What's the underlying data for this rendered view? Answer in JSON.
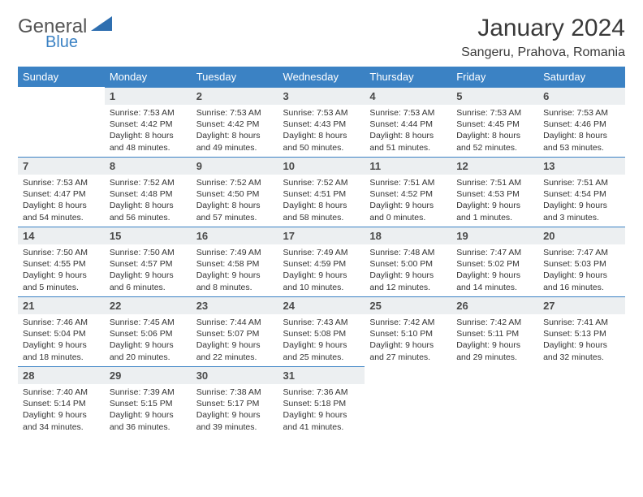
{
  "logo": {
    "word1": "General",
    "word2": "Blue"
  },
  "header": {
    "month": "January 2024",
    "location": "Sangeru, Prahova, Romania"
  },
  "colors": {
    "accent": "#3b82c4",
    "dayHeaderBg": "#eceff1",
    "textDark": "#3a3a3a"
  },
  "weekdays": [
    "Sunday",
    "Monday",
    "Tuesday",
    "Wednesday",
    "Thursday",
    "Friday",
    "Saturday"
  ],
  "firstWeekday": 1,
  "days": [
    {
      "n": "1",
      "sunrise": "7:53 AM",
      "sunset": "4:42 PM",
      "day_h": "8",
      "day_m": "48"
    },
    {
      "n": "2",
      "sunrise": "7:53 AM",
      "sunset": "4:42 PM",
      "day_h": "8",
      "day_m": "49"
    },
    {
      "n": "3",
      "sunrise": "7:53 AM",
      "sunset": "4:43 PM",
      "day_h": "8",
      "day_m": "50"
    },
    {
      "n": "4",
      "sunrise": "7:53 AM",
      "sunset": "4:44 PM",
      "day_h": "8",
      "day_m": "51"
    },
    {
      "n": "5",
      "sunrise": "7:53 AM",
      "sunset": "4:45 PM",
      "day_h": "8",
      "day_m": "52"
    },
    {
      "n": "6",
      "sunrise": "7:53 AM",
      "sunset": "4:46 PM",
      "day_h": "8",
      "day_m": "53"
    },
    {
      "n": "7",
      "sunrise": "7:53 AM",
      "sunset": "4:47 PM",
      "day_h": "8",
      "day_m": "54"
    },
    {
      "n": "8",
      "sunrise": "7:52 AM",
      "sunset": "4:48 PM",
      "day_h": "8",
      "day_m": "56"
    },
    {
      "n": "9",
      "sunrise": "7:52 AM",
      "sunset": "4:50 PM",
      "day_h": "8",
      "day_m": "57"
    },
    {
      "n": "10",
      "sunrise": "7:52 AM",
      "sunset": "4:51 PM",
      "day_h": "8",
      "day_m": "58"
    },
    {
      "n": "11",
      "sunrise": "7:51 AM",
      "sunset": "4:52 PM",
      "day_h": "9",
      "day_m": "0"
    },
    {
      "n": "12",
      "sunrise": "7:51 AM",
      "sunset": "4:53 PM",
      "day_h": "9",
      "day_m": "1"
    },
    {
      "n": "13",
      "sunrise": "7:51 AM",
      "sunset": "4:54 PM",
      "day_h": "9",
      "day_m": "3"
    },
    {
      "n": "14",
      "sunrise": "7:50 AM",
      "sunset": "4:55 PM",
      "day_h": "9",
      "day_m": "5"
    },
    {
      "n": "15",
      "sunrise": "7:50 AM",
      "sunset": "4:57 PM",
      "day_h": "9",
      "day_m": "6"
    },
    {
      "n": "16",
      "sunrise": "7:49 AM",
      "sunset": "4:58 PM",
      "day_h": "9",
      "day_m": "8"
    },
    {
      "n": "17",
      "sunrise": "7:49 AM",
      "sunset": "4:59 PM",
      "day_h": "9",
      "day_m": "10"
    },
    {
      "n": "18",
      "sunrise": "7:48 AM",
      "sunset": "5:00 PM",
      "day_h": "9",
      "day_m": "12"
    },
    {
      "n": "19",
      "sunrise": "7:47 AM",
      "sunset": "5:02 PM",
      "day_h": "9",
      "day_m": "14"
    },
    {
      "n": "20",
      "sunrise": "7:47 AM",
      "sunset": "5:03 PM",
      "day_h": "9",
      "day_m": "16"
    },
    {
      "n": "21",
      "sunrise": "7:46 AM",
      "sunset": "5:04 PM",
      "day_h": "9",
      "day_m": "18"
    },
    {
      "n": "22",
      "sunrise": "7:45 AM",
      "sunset": "5:06 PM",
      "day_h": "9",
      "day_m": "20"
    },
    {
      "n": "23",
      "sunrise": "7:44 AM",
      "sunset": "5:07 PM",
      "day_h": "9",
      "day_m": "22"
    },
    {
      "n": "24",
      "sunrise": "7:43 AM",
      "sunset": "5:08 PM",
      "day_h": "9",
      "day_m": "25"
    },
    {
      "n": "25",
      "sunrise": "7:42 AM",
      "sunset": "5:10 PM",
      "day_h": "9",
      "day_m": "27"
    },
    {
      "n": "26",
      "sunrise": "7:42 AM",
      "sunset": "5:11 PM",
      "day_h": "9",
      "day_m": "29"
    },
    {
      "n": "27",
      "sunrise": "7:41 AM",
      "sunset": "5:13 PM",
      "day_h": "9",
      "day_m": "32"
    },
    {
      "n": "28",
      "sunrise": "7:40 AM",
      "sunset": "5:14 PM",
      "day_h": "9",
      "day_m": "34"
    },
    {
      "n": "29",
      "sunrise": "7:39 AM",
      "sunset": "5:15 PM",
      "day_h": "9",
      "day_m": "36"
    },
    {
      "n": "30",
      "sunrise": "7:38 AM",
      "sunset": "5:17 PM",
      "day_h": "9",
      "day_m": "39"
    },
    {
      "n": "31",
      "sunrise": "7:36 AM",
      "sunset": "5:18 PM",
      "day_h": "9",
      "day_m": "41"
    }
  ],
  "labels": {
    "sunrise": "Sunrise:",
    "sunset": "Sunset:",
    "daylight": "Daylight:",
    "hours": "hours",
    "and": "and",
    "minutes": "minutes."
  }
}
